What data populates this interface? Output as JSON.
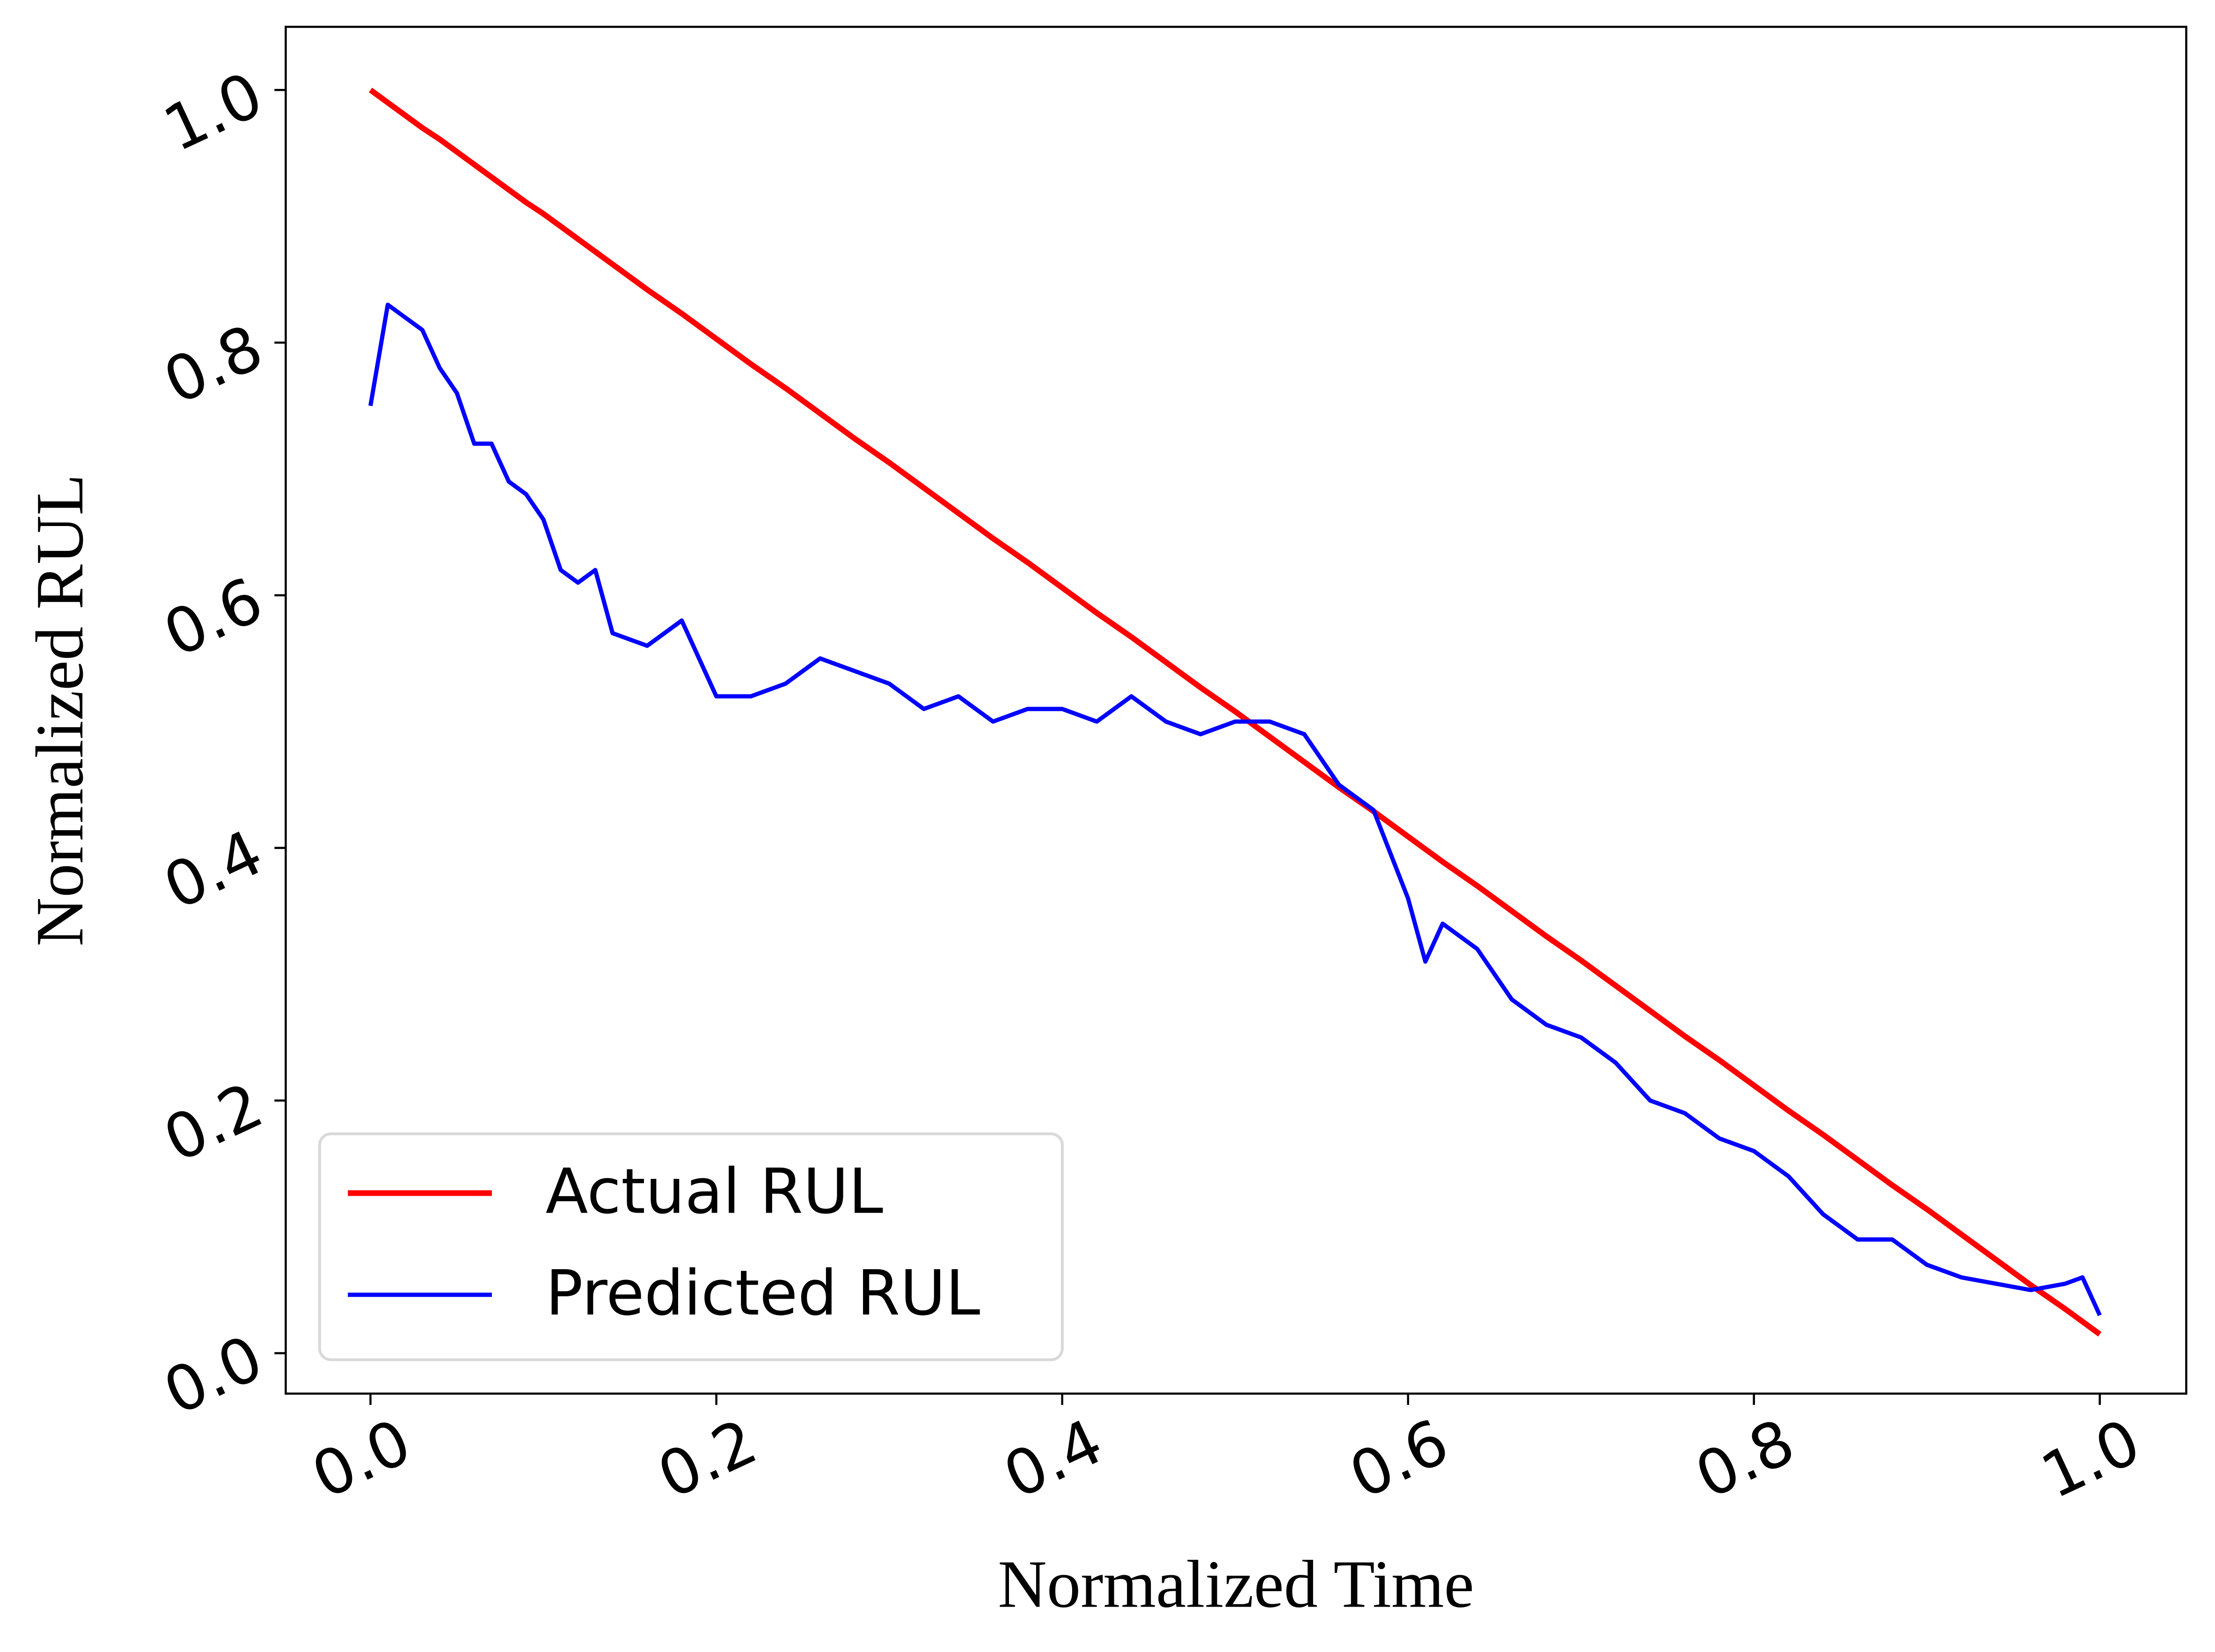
{
  "chart_data": {
    "type": "line",
    "xlabel": "Normalized Time",
    "ylabel": "Normalized RUL",
    "x": [
      0,
      0.01,
      0.02,
      0.03,
      0.04,
      0.05,
      0.06,
      0.07,
      0.08,
      0.09,
      0.1,
      0.11,
      0.12,
      0.13,
      0.14,
      0.16,
      0.18,
      0.2,
      0.22,
      0.24,
      0.26,
      0.28,
      0.3,
      0.32,
      0.34,
      0.36,
      0.38,
      0.4,
      0.42,
      0.44,
      0.46,
      0.48,
      0.5,
      0.52,
      0.54,
      0.56,
      0.58,
      0.6,
      0.61,
      0.62,
      0.64,
      0.66,
      0.68,
      0.7,
      0.72,
      0.74,
      0.76,
      0.78,
      0.8,
      0.82,
      0.84,
      0.86,
      0.88,
      0.9,
      0.92,
      0.94,
      0.96,
      0.98,
      0.99,
      1.0
    ],
    "series": [
      {
        "name": "Actual RUL",
        "color": "#ff0000",
        "values": [
          1,
          0.99,
          0.98,
          0.97,
          0.961,
          0.951,
          0.941,
          0.931,
          0.921,
          0.911,
          0.902,
          0.892,
          0.882,
          0.872,
          0.862,
          0.842,
          0.823,
          0.803,
          0.783,
          0.764,
          0.744,
          0.724,
          0.705,
          0.685,
          0.665,
          0.645,
          0.626,
          0.606,
          0.586,
          0.567,
          0.547,
          0.527,
          0.508,
          0.488,
          0.468,
          0.448,
          0.429,
          0.409,
          0.399,
          0.389,
          0.37,
          0.35,
          0.33,
          0.311,
          0.291,
          0.271,
          0.251,
          0.232,
          0.212,
          0.192,
          0.173,
          0.153,
          0.133,
          0.114,
          0.094,
          0.074,
          0.054,
          0.035,
          0.025,
          0.015
        ]
      },
      {
        "name": "Predicted RUL",
        "color": "#0000ff",
        "values": [
          0.75,
          0.83,
          0.82,
          0.81,
          0.78,
          0.76,
          0.72,
          0.72,
          0.69,
          0.68,
          0.66,
          0.62,
          0.61,
          0.62,
          0.57,
          0.56,
          0.58,
          0.52,
          0.52,
          0.53,
          0.55,
          0.54,
          0.53,
          0.51,
          0.52,
          0.5,
          0.51,
          0.51,
          0.5,
          0.52,
          0.5,
          0.49,
          0.5,
          0.5,
          0.49,
          0.45,
          0.43,
          0.36,
          0.31,
          0.34,
          0.32,
          0.28,
          0.26,
          0.25,
          0.23,
          0.2,
          0.19,
          0.17,
          0.16,
          0.14,
          0.11,
          0.09,
          0.09,
          0.07,
          0.06,
          0.055,
          0.05,
          0.055,
          0.06,
          0.03
        ]
      }
    ],
    "xlim": [
      -0.049,
      1.05
    ],
    "ylim": [
      -0.032,
      1.05
    ],
    "xticks": [
      {
        "value": 0,
        "label": "0.0"
      },
      0.2,
      0.4,
      0.6,
      0.8,
      {
        "value": 1,
        "label": "1.0"
      }
    ],
    "yticks": [
      {
        "value": 0,
        "label": "0.0"
      },
      0.2,
      0.4,
      0.6,
      0.8,
      {
        "value": 1,
        "label": "1.0"
      }
    ],
    "grid": false,
    "legend": "lower left"
  }
}
